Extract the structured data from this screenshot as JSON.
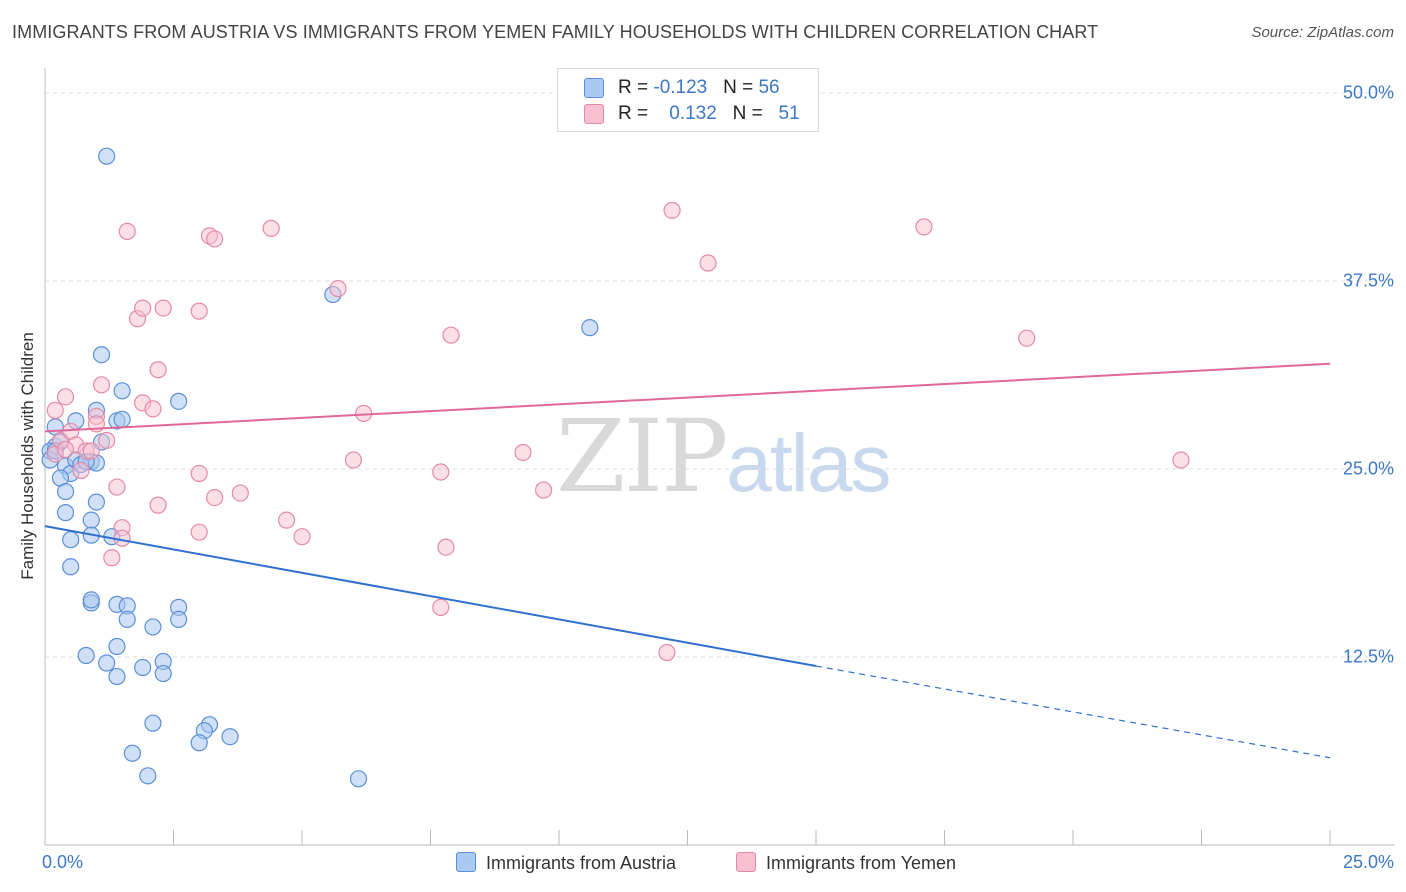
{
  "header": {
    "title": "IMMIGRANTS FROM AUSTRIA VS IMMIGRANTS FROM YEMEN FAMILY HOUSEHOLDS WITH CHILDREN CORRELATION CHART",
    "source": "Source: ZipAtlas.com"
  },
  "watermark": {
    "zip": "ZIP",
    "atlas": "atlas"
  },
  "legend": {
    "austria": {
      "r_label": "R = ",
      "r_value": "-0.123",
      "n_label": "N = ",
      "n_value": "56"
    },
    "yemen": {
      "r_label": "R = ",
      "r_value": "0.132",
      "n_label": "N = ",
      "n_value": "51"
    }
  },
  "bottom_legend": {
    "austria": "Immigrants from Austria",
    "yemen": "Immigrants from Yemen"
  },
  "colors": {
    "austria_fill": "#aac8f0",
    "austria_stroke": "#5b8fd8",
    "austria_line": "#2f6fcf",
    "yemen_fill": "#f7bfd0",
    "yemen_stroke": "#e48aa8",
    "yemen_line": "#e0679a",
    "tick_text": "#3c78c8",
    "grid": "#dddddd"
  },
  "chart_data": {
    "type": "scatter",
    "title": "IMMIGRANTS FROM AUSTRIA VS IMMIGRANTS FROM YEMEN FAMILY HOUSEHOLDS WITH CHILDREN CORRELATION CHART",
    "xlabel": "",
    "ylabel": "Family Households with Children",
    "xlim": [
      0,
      25
    ],
    "ylim": [
      0,
      51
    ],
    "x_tick_labels": [
      "0.0%",
      "25.0%"
    ],
    "y_ticks": [
      12.5,
      25.0,
      37.5,
      50.0
    ],
    "y_tick_labels": [
      "12.5%",
      "25.0%",
      "37.5%",
      "50.0%"
    ],
    "grid": true,
    "legend_position": "top-center",
    "series": [
      {
        "name": "Immigrants from Austria",
        "r": -0.123,
        "n": 56,
        "trend": {
          "x_start": 0,
          "y_start": 21.2,
          "x_solid_end": 15,
          "y_solid_end": 11.9,
          "x_dash_end": 25,
          "y_dash_end": 5.8
        },
        "points": [
          [
            1.2,
            45.8
          ],
          [
            0.2,
            26.5
          ],
          [
            0.3,
            26.8
          ],
          [
            0.1,
            26.2
          ],
          [
            0.2,
            27.8
          ],
          [
            0.4,
            25.2
          ],
          [
            0.5,
            24.7
          ],
          [
            0.6,
            25.6
          ],
          [
            0.9,
            25.5
          ],
          [
            0.7,
            25.3
          ],
          [
            1.0,
            25.4
          ],
          [
            0.8,
            25.5
          ],
          [
            0.6,
            28.2
          ],
          [
            1.1,
            26.8
          ],
          [
            0.3,
            24.4
          ],
          [
            0.4,
            23.5
          ],
          [
            1.0,
            22.8
          ],
          [
            0.4,
            22.1
          ],
          [
            0.9,
            21.6
          ],
          [
            1.3,
            20.5
          ],
          [
            1.4,
            28.2
          ],
          [
            1.0,
            28.9
          ],
          [
            1.5,
            30.2
          ],
          [
            1.1,
            32.6
          ],
          [
            2.6,
            29.5
          ],
          [
            0.5,
            20.3
          ],
          [
            0.5,
            18.5
          ],
          [
            0.9,
            20.6
          ],
          [
            0.9,
            16.1
          ],
          [
            0.9,
            16.3
          ],
          [
            1.4,
            16.0
          ],
          [
            1.6,
            15.9
          ],
          [
            2.6,
            15.8
          ],
          [
            2.6,
            15.0
          ],
          [
            1.6,
            15.0
          ],
          [
            2.1,
            14.5
          ],
          [
            1.4,
            13.2
          ],
          [
            0.8,
            12.6
          ],
          [
            1.2,
            12.1
          ],
          [
            1.9,
            11.8
          ],
          [
            2.3,
            12.2
          ],
          [
            2.3,
            11.4
          ],
          [
            1.4,
            11.2
          ],
          [
            2.1,
            8.1
          ],
          [
            3.2,
            8.0
          ],
          [
            3.1,
            7.6
          ],
          [
            3.6,
            7.2
          ],
          [
            3.0,
            6.8
          ],
          [
            1.7,
            6.1
          ],
          [
            2.0,
            4.6
          ],
          [
            6.1,
            4.4
          ],
          [
            5.6,
            36.6
          ],
          [
            10.6,
            34.4
          ],
          [
            0.1,
            25.6
          ],
          [
            1.5,
            28.3
          ],
          [
            0.2,
            26.2
          ]
        ]
      },
      {
        "name": "Immigrants from Yemen",
        "r": 0.132,
        "n": 51,
        "trend": {
          "x_start": 0,
          "y_start": 27.5,
          "x_end": 25,
          "y_end": 32.0
        },
        "points": [
          [
            0.2,
            26.0
          ],
          [
            0.3,
            26.9
          ],
          [
            0.2,
            28.9
          ],
          [
            0.4,
            29.8
          ],
          [
            0.5,
            27.5
          ],
          [
            0.6,
            26.6
          ],
          [
            0.8,
            26.2
          ],
          [
            0.9,
            26.2
          ],
          [
            1.2,
            26.9
          ],
          [
            1.0,
            28.5
          ],
          [
            1.0,
            28.0
          ],
          [
            0.7,
            24.9
          ],
          [
            1.1,
            30.6
          ],
          [
            1.4,
            23.8
          ],
          [
            1.5,
            21.1
          ],
          [
            1.3,
            19.1
          ],
          [
            1.5,
            20.4
          ],
          [
            1.9,
            29.4
          ],
          [
            2.1,
            29.0
          ],
          [
            2.2,
            31.6
          ],
          [
            1.8,
            35.0
          ],
          [
            1.9,
            35.7
          ],
          [
            2.3,
            35.7
          ],
          [
            3.0,
            35.5
          ],
          [
            1.6,
            40.8
          ],
          [
            3.2,
            40.5
          ],
          [
            3.3,
            40.3
          ],
          [
            4.4,
            41.0
          ],
          [
            5.7,
            37.0
          ],
          [
            3.0,
            24.7
          ],
          [
            2.2,
            22.6
          ],
          [
            3.3,
            23.1
          ],
          [
            3.8,
            23.4
          ],
          [
            3.0,
            20.8
          ],
          [
            4.7,
            21.6
          ],
          [
            5.0,
            20.5
          ],
          [
            6.0,
            25.6
          ],
          [
            6.2,
            28.7
          ],
          [
            7.7,
            24.8
          ],
          [
            7.9,
            33.9
          ],
          [
            9.3,
            26.1
          ],
          [
            9.7,
            23.6
          ],
          [
            7.8,
            19.8
          ],
          [
            7.7,
            15.8
          ],
          [
            12.2,
            42.2
          ],
          [
            12.9,
            38.7
          ],
          [
            12.1,
            12.8
          ],
          [
            17.1,
            41.1
          ],
          [
            19.1,
            33.7
          ],
          [
            22.1,
            25.6
          ],
          [
            0.4,
            26.3
          ]
        ]
      }
    ]
  }
}
